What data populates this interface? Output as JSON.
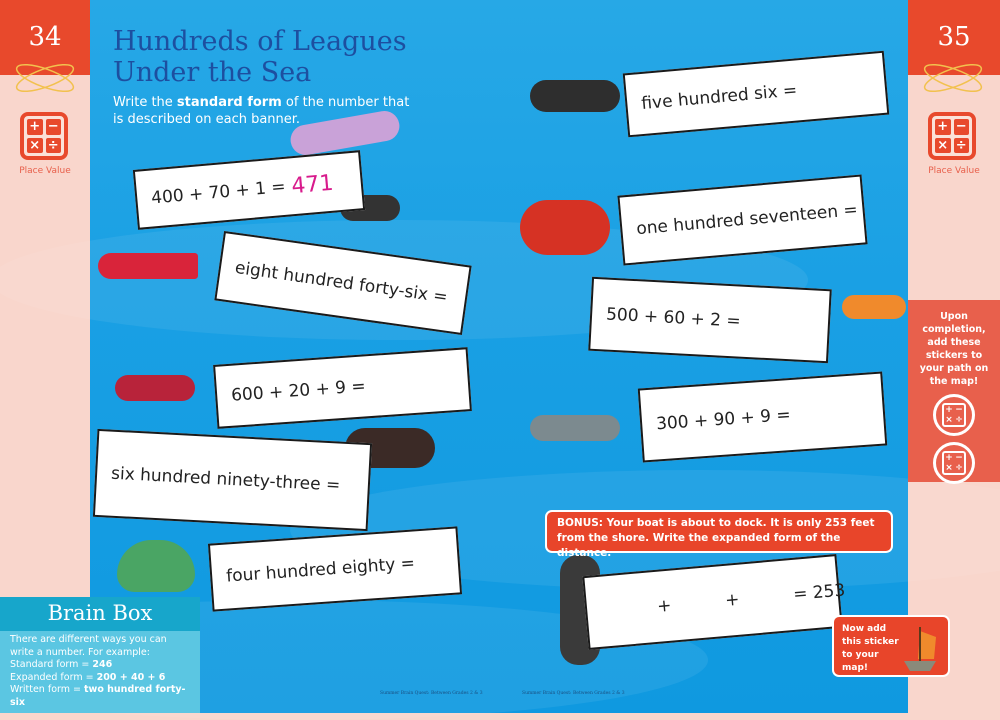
{
  "left_page": {
    "number": "34",
    "category": "Place Value",
    "calc_symbols": [
      "+",
      "−",
      "×",
      "÷"
    ]
  },
  "right_page": {
    "number": "35",
    "category": "Place Value"
  },
  "title_line1": "Hundreds of Leagues",
  "title_line2": "Under the Sea",
  "instructions": {
    "pre": "Write the ",
    "bold": "standard form",
    "post": " of the number that is described on each banner."
  },
  "banners": [
    {
      "text": "400 + 70 + 1 =",
      "answer": "471"
    },
    {
      "text": "eight hundred forty-six ="
    },
    {
      "text": "600 + 20 + 9 ="
    },
    {
      "text": "six hundred ninety-three ="
    },
    {
      "text": "four hundred eighty ="
    },
    {
      "text": "five hundred six ="
    },
    {
      "text": "one hundred seventeen ="
    },
    {
      "text": "500 + 60 + 2 ="
    },
    {
      "text": "300 + 90 + 9 ="
    },
    {
      "text": "+          +          = 253"
    }
  ],
  "bonus": {
    "label": "BONUS:",
    "text": " Your boat is about to dock. It is only 253 feet from the shore. Write the expanded form of the distance."
  },
  "brain_box": {
    "title": "Brain Box",
    "intro": "There are different ways you can write a number. For example:",
    "standard_label": "Standard form = ",
    "standard_value": "246",
    "expanded_label": "Expanded form = ",
    "expanded_value": "200 + 40 + 6",
    "written_label": "Written form = ",
    "written_value": "two hundred forty-six"
  },
  "stickers_note": "Upon completion, add these stickers to your path on the map!",
  "sticker_box": "Now add this sticker to your map!",
  "footer_left": "Summer Brain Quest: Between Grades 2 & 3",
  "footer_right": "Summer Brain Quest: Between Grades 2 & 3",
  "colors": {
    "sea": "#1aa0e4",
    "accent": "#e8492c",
    "title": "#1d4fa0",
    "answer": "#d81b8c"
  }
}
